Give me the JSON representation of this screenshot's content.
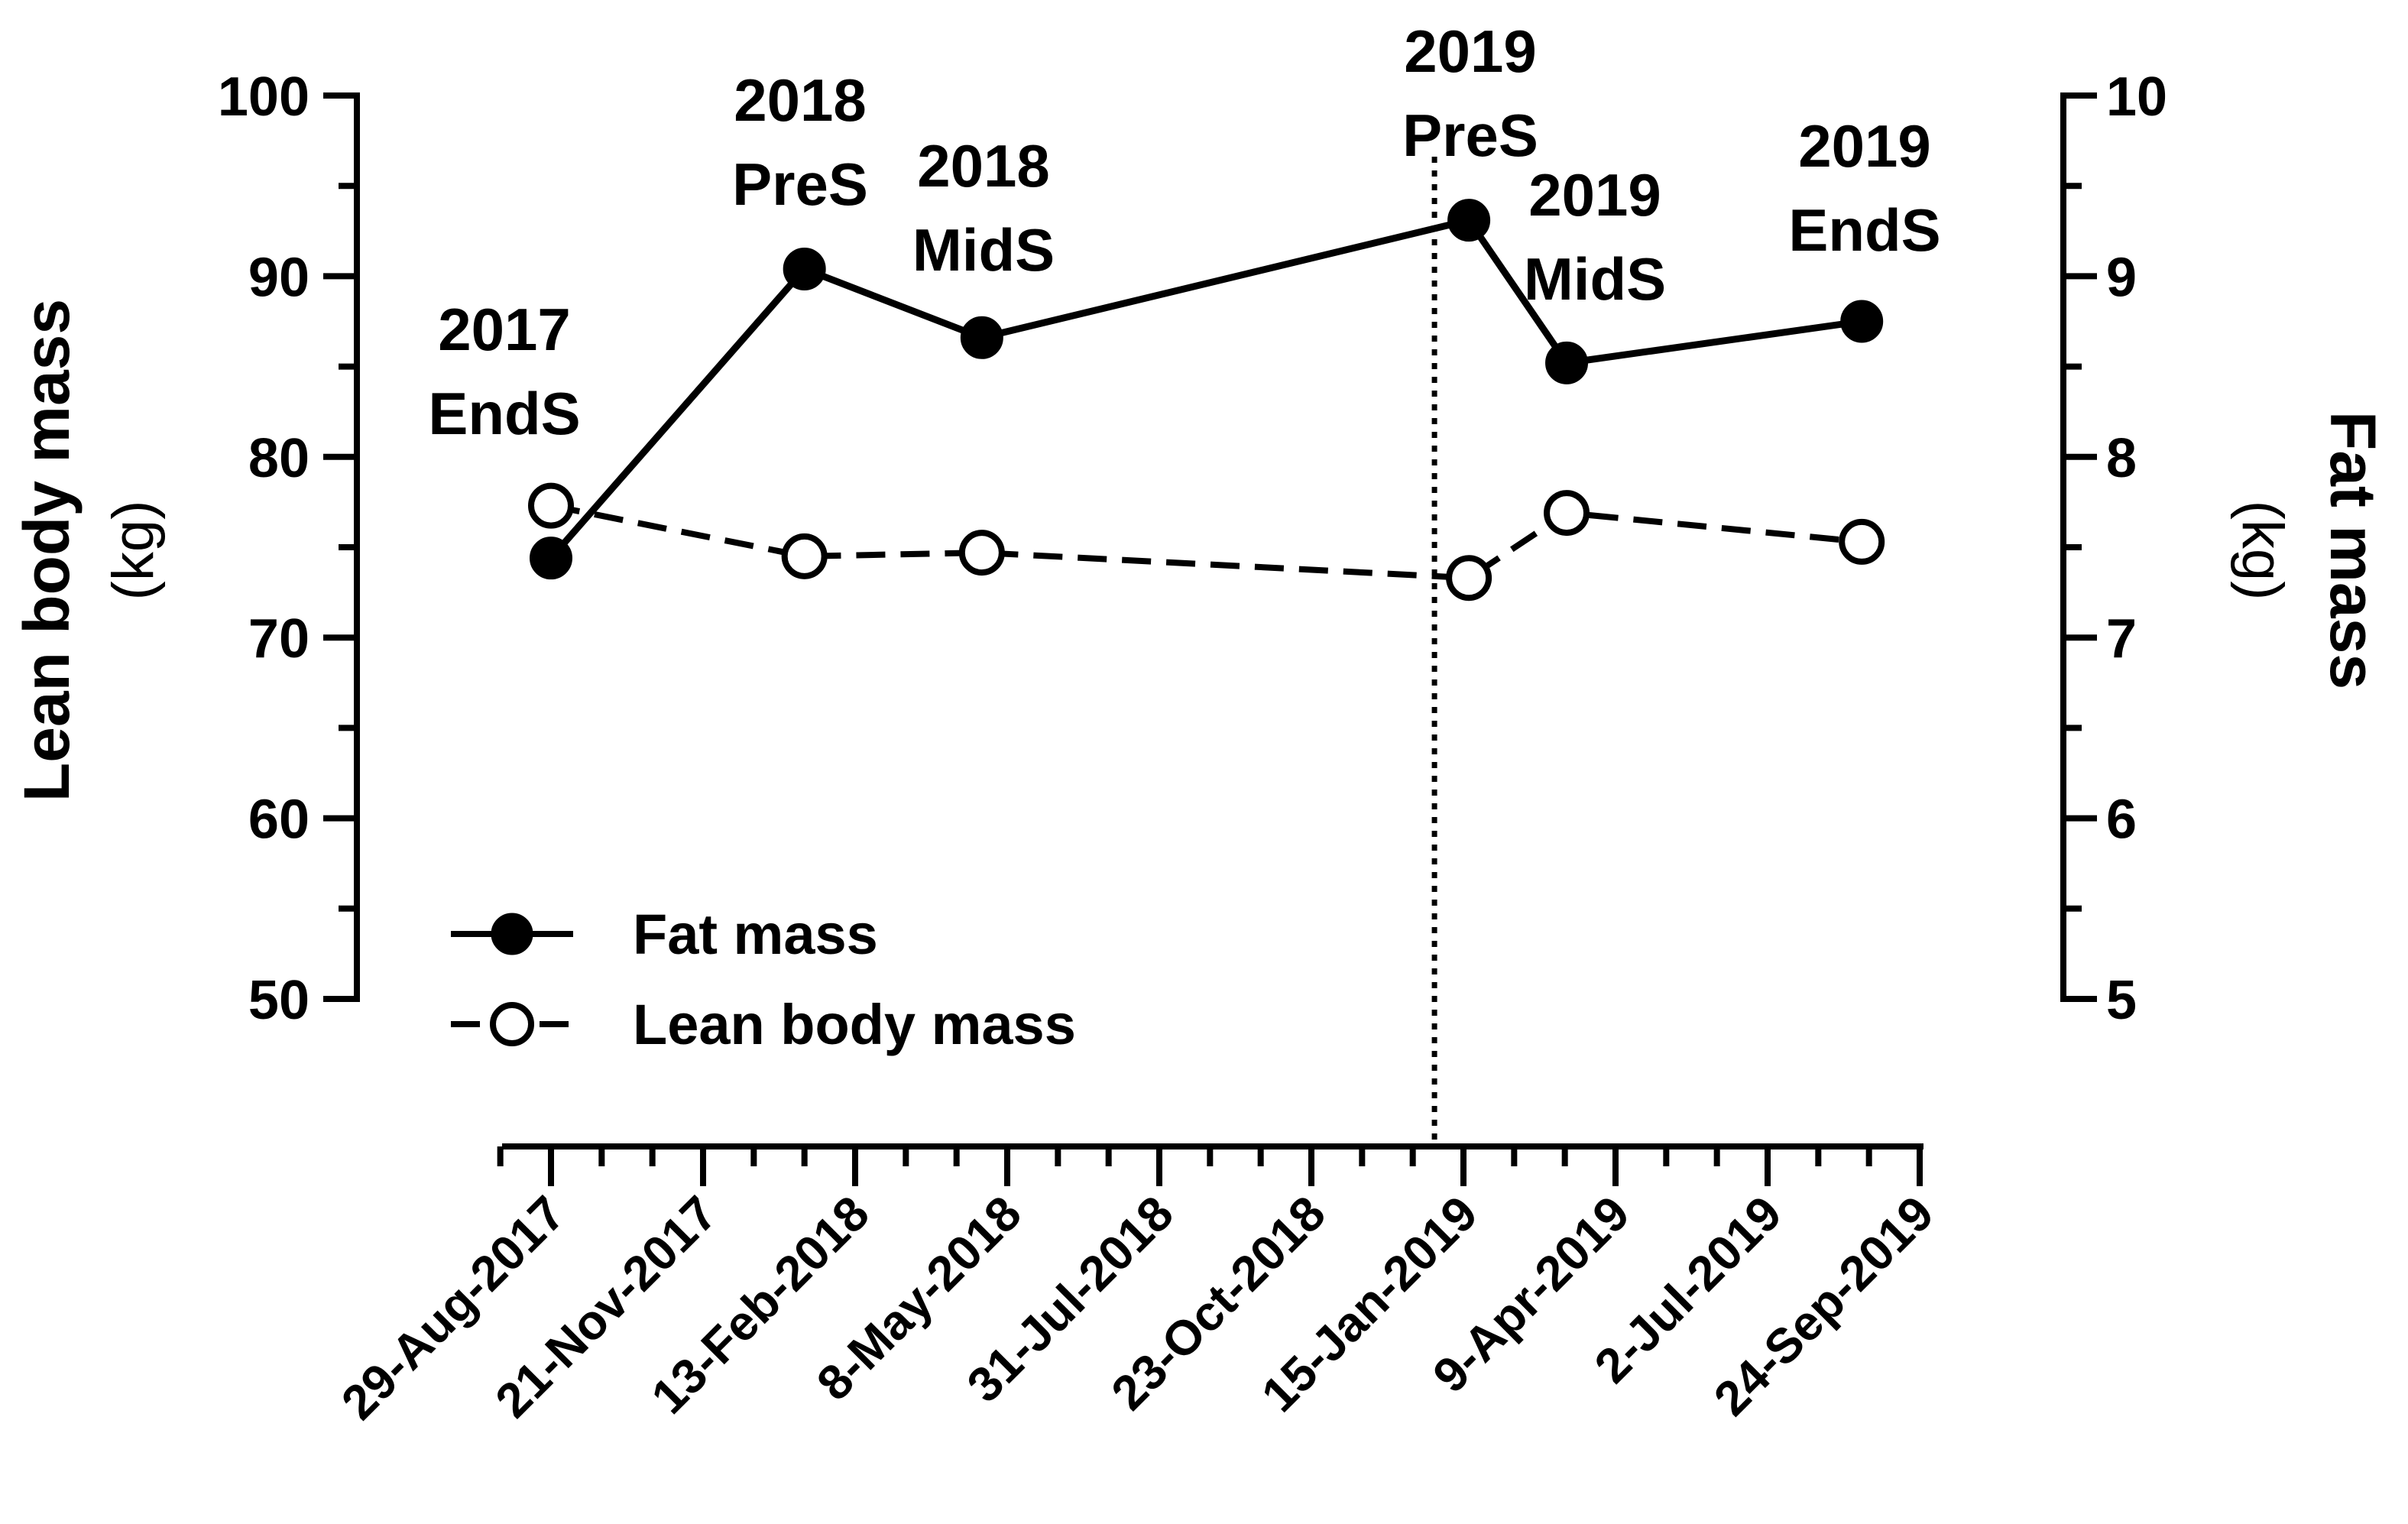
{
  "chart_data": {
    "type": "line",
    "title": "",
    "xlabel": "",
    "ylabel_left": "Lean body mass",
    "ylabel_left_unit": "(kg)",
    "ylabel_right": "Fat mass",
    "ylabel_right_unit": "(kg)",
    "ylim_left": [
      50,
      100
    ],
    "yticks_left": [
      "50",
      "60",
      "70",
      "80",
      "90",
      "100"
    ],
    "ylim_right": [
      5,
      10
    ],
    "yticks_right": [
      "5",
      "6",
      "7",
      "8",
      "9",
      "10"
    ],
    "x_tick_labels": [
      "29-Aug-2017",
      "21-Nov-2017",
      "13-Feb-2018",
      "8-May-2018",
      "31-Jul-2018",
      "23-Oct-2018",
      "15-Jan-2019",
      "9-Apr-2019",
      "2-Jul-2019",
      "24-Sep-2019"
    ],
    "x_tick_days": [
      0,
      84,
      168,
      252,
      336,
      420,
      504,
      588,
      672,
      756
    ],
    "x_range_days": [
      -28,
      756
    ],
    "vertical_line_day": 488,
    "series": [
      {
        "name": "Fat mass",
        "axis": "right",
        "marker": "filled-circle",
        "line": "solid",
        "x_days": [
          0,
          140,
          238,
          507,
          561,
          724
        ],
        "values": [
          7.44,
          9.04,
          8.66,
          9.31,
          8.52,
          8.75
        ]
      },
      {
        "name": "Lean body mass",
        "axis": "left",
        "marker": "open-circle",
        "line": "dashed",
        "x_days": [
          0,
          140,
          238,
          507,
          561,
          724
        ],
        "values": [
          77.3,
          74.5,
          74.7,
          73.3,
          76.9,
          75.3
        ]
      }
    ],
    "annotations": [
      {
        "line1": "2017",
        "line2": "EndS"
      },
      {
        "line1": "2018",
        "line2": "PreS"
      },
      {
        "line1": "2018",
        "line2": "MidS"
      },
      {
        "line1": "2019",
        "line2": "PreS"
      },
      {
        "line1": "2019",
        "line2": "MidS"
      },
      {
        "line1": "2019",
        "line2": "EndS"
      }
    ],
    "legend": {
      "position": "bottom-left",
      "items": [
        "Fat mass",
        "Lean body mass"
      ]
    }
  }
}
